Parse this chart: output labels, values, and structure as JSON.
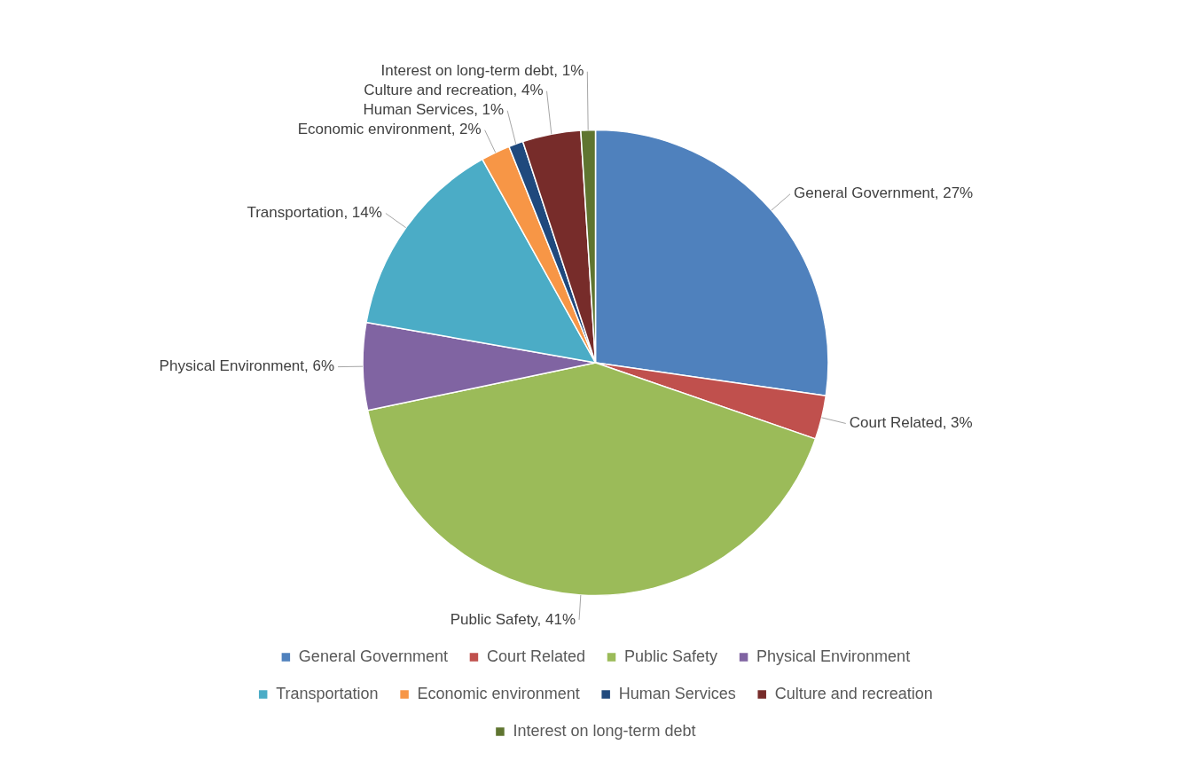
{
  "chart_data": {
    "type": "pie",
    "categories": [
      "General Government",
      "Court Related",
      "Public Safety",
      "Physical Environment",
      "Transportation",
      "Economic environment",
      "Human Services",
      "Culture and recreation",
      "Interest on long-term debt"
    ],
    "values": [
      27,
      3,
      41,
      6,
      14,
      2,
      1,
      4,
      1
    ],
    "value_labels": [
      "General Government, 27%",
      "Court Related, 3%",
      "Public Safety, 41%",
      "Physical Environment, 6%",
      "Transportation, 14%",
      "Economic environment, 2%",
      "Human Services, 1%",
      "Culture and recreation, 4%",
      "Interest on long-term debt, 1%"
    ],
    "colors": [
      "#4f81bd",
      "#c0504d",
      "#9bbb59",
      "#8064a2",
      "#4bacc6",
      "#f79646",
      "#1f497d",
      "#772c2a",
      "#5f7530"
    ],
    "legend": "bottom"
  }
}
